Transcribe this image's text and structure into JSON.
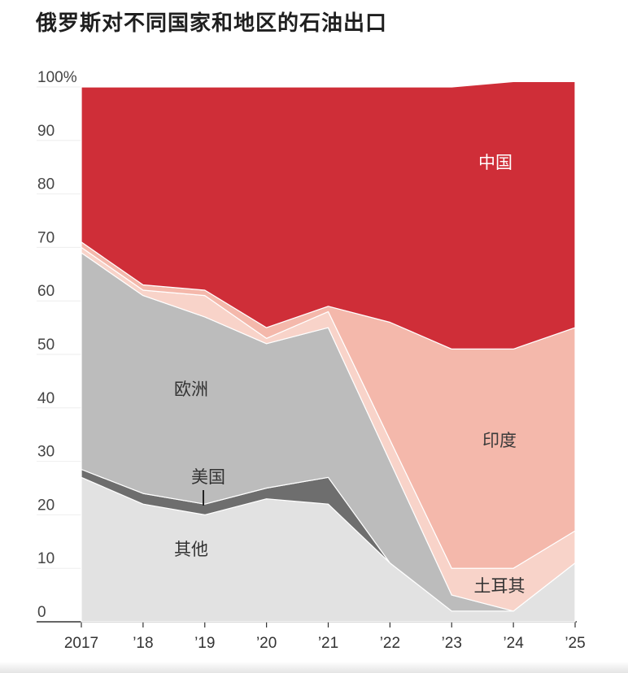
{
  "chart_data": {
    "type": "area",
    "stacked": true,
    "title": "俄罗斯对不同国家和地区的石油出口",
    "x": [
      "2017",
      "’18",
      "’19",
      "’20",
      "’21",
      "’22",
      "’23",
      "’24",
      "’25"
    ],
    "ylim": [
      0,
      100
    ],
    "yticks": [
      "0",
      "10",
      "20",
      "30",
      "40",
      "50",
      "60",
      "70",
      "80",
      "90",
      "100%"
    ],
    "grid": true,
    "series": [
      {
        "name": "其他",
        "color": "#e2e2e2",
        "values": [
          27,
          22,
          20,
          23,
          22,
          11,
          2,
          2,
          11
        ]
      },
      {
        "name": "美国",
        "color": "#6e6e6e",
        "values": [
          1.5,
          2,
          2,
          2,
          5,
          0,
          0,
          0,
          0
        ]
      },
      {
        "name": "欧洲",
        "color": "#bcbcbc",
        "values": [
          40.5,
          37,
          35,
          27,
          28,
          19,
          3,
          0,
          0
        ]
      },
      {
        "name": "土耳其",
        "color": "#f8d3c9",
        "values": [
          1,
          1,
          4,
          1,
          3,
          4,
          5,
          8,
          6
        ]
      },
      {
        "name": "印度",
        "color": "#f4b8ab",
        "values": [
          1,
          1,
          1,
          2,
          1,
          22,
          41,
          41,
          38
        ]
      },
      {
        "name": "中国",
        "color": "#cf2e38",
        "values": [
          29,
          37,
          38,
          45,
          41,
          44,
          49,
          50,
          46
        ]
      }
    ]
  }
}
